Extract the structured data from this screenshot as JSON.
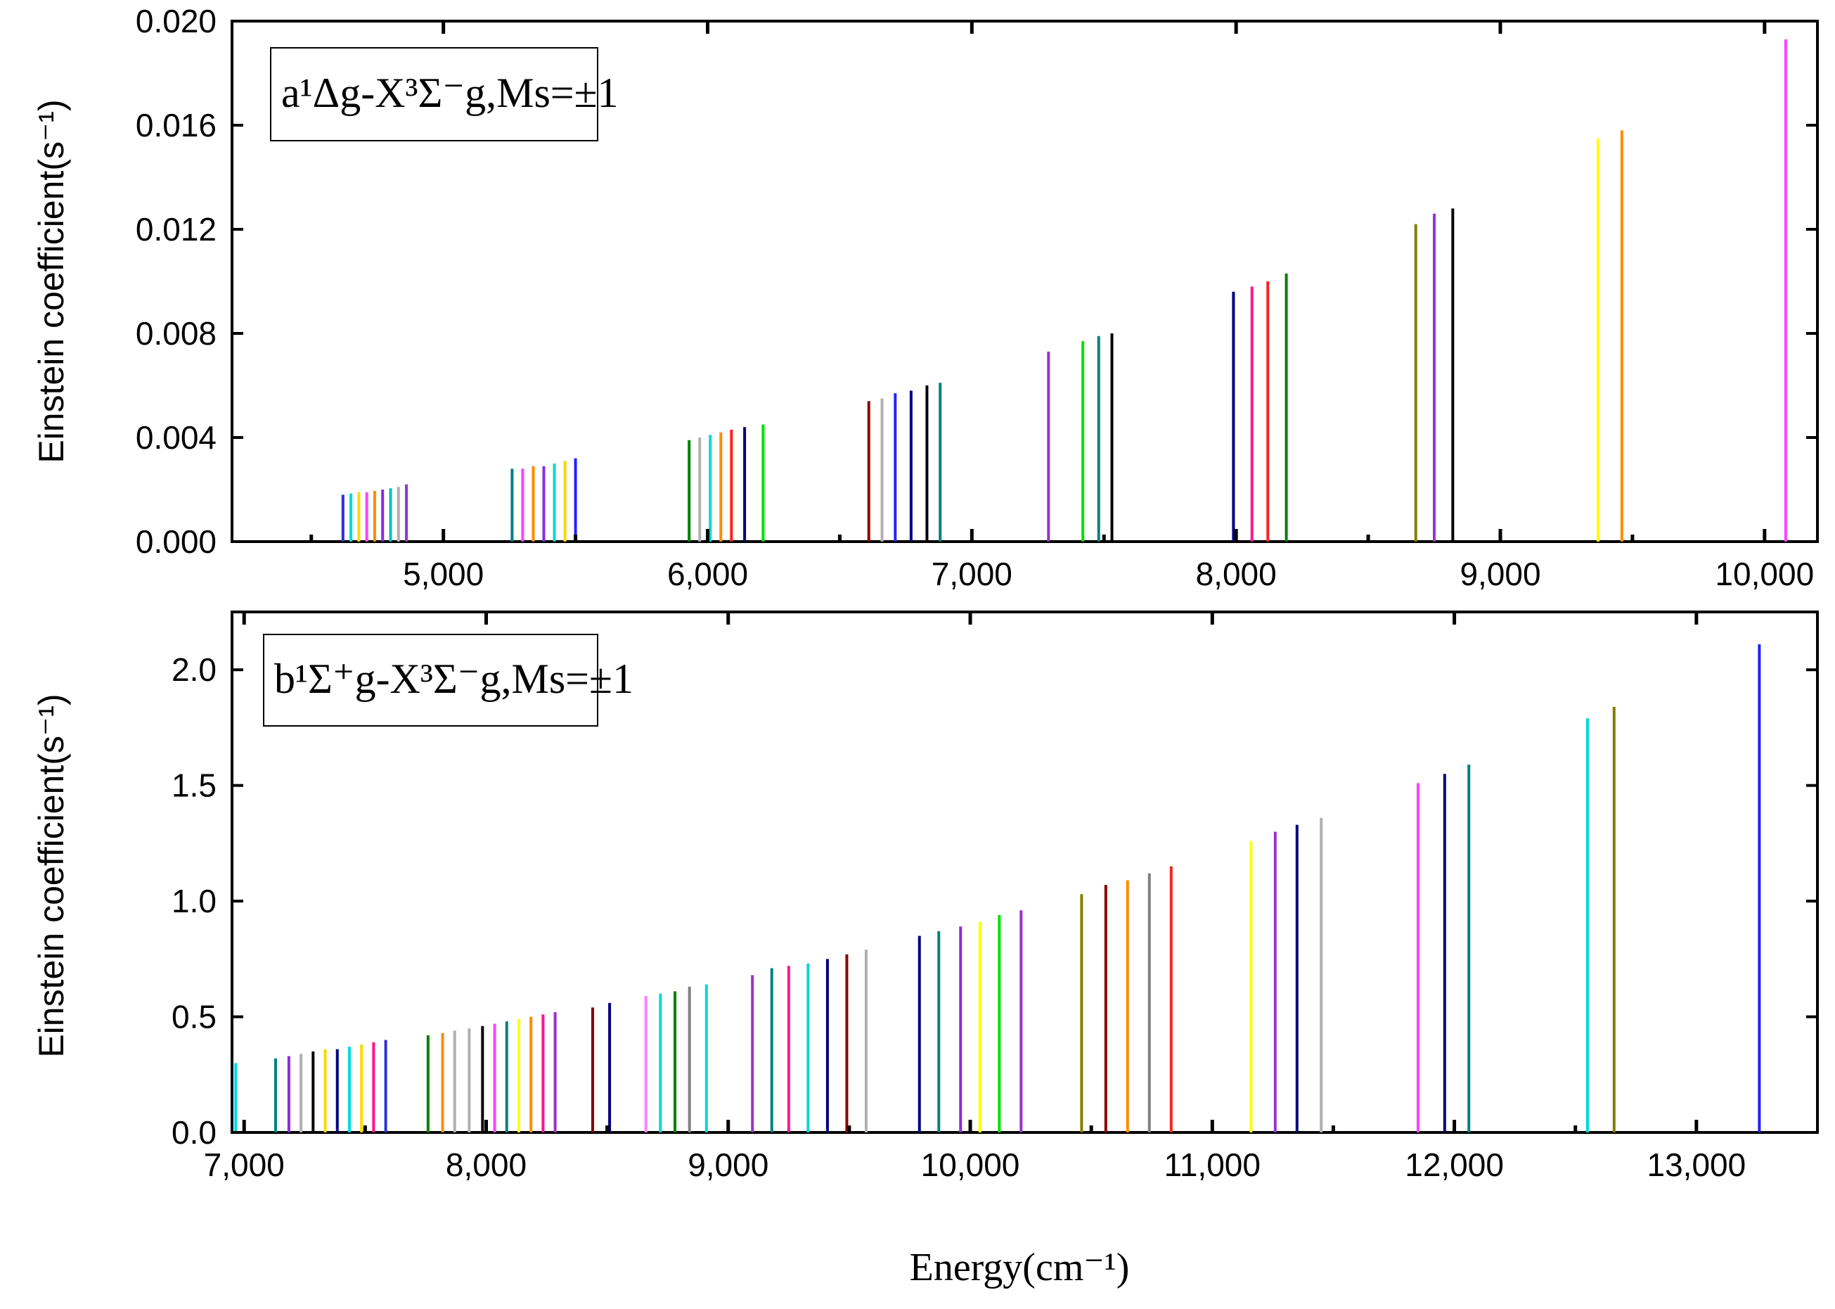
{
  "chart_data": [
    {
      "type": "bar",
      "legend": "a¹Δg-X³Σ⁻g,Ms=±1",
      "ylabel": "Einstein coefficient(s⁻¹)",
      "xlabel": "",
      "xlim": [
        4200,
        10200
      ],
      "ylim": [
        0,
        0.02
      ],
      "xticks": [
        "5,000",
        "6,000",
        "7,000",
        "8,000",
        "9,000",
        "10,000"
      ],
      "xtick_values": [
        5000,
        6000,
        7000,
        8000,
        9000,
        10000
      ],
      "yticks": [
        "0.000",
        "0.004",
        "0.008",
        "0.012",
        "0.016",
        "0.020"
      ],
      "ytick_values": [
        0,
        0.004,
        0.008,
        0.012,
        0.016,
        0.02
      ],
      "series": [
        {
          "x": 4620,
          "value": 0.0018,
          "color": "#3030d0"
        },
        {
          "x": 4650,
          "value": 0.00185,
          "color": "#00d8d8"
        },
        {
          "x": 4680,
          "value": 0.0019,
          "color": "#ffd700"
        },
        {
          "x": 4710,
          "value": 0.0019,
          "color": "#ff40ff"
        },
        {
          "x": 4740,
          "value": 0.00195,
          "color": "#ff8c00"
        },
        {
          "x": 4770,
          "value": 0.002,
          "color": "#8a2be2"
        },
        {
          "x": 4800,
          "value": 0.00205,
          "color": "#00c0c0"
        },
        {
          "x": 4830,
          "value": 0.0021,
          "color": "#b0b0b0"
        },
        {
          "x": 4860,
          "value": 0.0022,
          "color": "#9932cc"
        },
        {
          "x": 5260,
          "value": 0.0028,
          "color": "#008080"
        },
        {
          "x": 5300,
          "value": 0.0028,
          "color": "#ff40ff"
        },
        {
          "x": 5340,
          "value": 0.0029,
          "color": "#ff8c00"
        },
        {
          "x": 5380,
          "value": 0.0029,
          "color": "#8a2be2"
        },
        {
          "x": 5420,
          "value": 0.003,
          "color": "#00d8d8"
        },
        {
          "x": 5460,
          "value": 0.0031,
          "color": "#ffd700"
        },
        {
          "x": 5500,
          "value": 0.0032,
          "color": "#2020ff"
        },
        {
          "x": 5930,
          "value": 0.0039,
          "color": "#008000"
        },
        {
          "x": 5970,
          "value": 0.004,
          "color": "#b0b0b0"
        },
        {
          "x": 6010,
          "value": 0.0041,
          "color": "#00d8d8"
        },
        {
          "x": 6050,
          "value": 0.0042,
          "color": "#ff8c00"
        },
        {
          "x": 6090,
          "value": 0.0043,
          "color": "#ff2020"
        },
        {
          "x": 6140,
          "value": 0.0044,
          "color": "#000080"
        },
        {
          "x": 6210,
          "value": 0.0045,
          "color": "#00e000"
        },
        {
          "x": 6610,
          "value": 0.0054,
          "color": "#8b0000"
        },
        {
          "x": 6660,
          "value": 0.0055,
          "color": "#b0b0b0"
        },
        {
          "x": 6710,
          "value": 0.0057,
          "color": "#2020ff"
        },
        {
          "x": 6770,
          "value": 0.0058,
          "color": "#000080"
        },
        {
          "x": 6830,
          "value": 0.006,
          "color": "#000000"
        },
        {
          "x": 6880,
          "value": 0.0061,
          "color": "#008080"
        },
        {
          "x": 7290,
          "value": 0.0073,
          "color": "#9932cc"
        },
        {
          "x": 7420,
          "value": 0.0077,
          "color": "#00e000"
        },
        {
          "x": 7480,
          "value": 0.0079,
          "color": "#008080"
        },
        {
          "x": 7530,
          "value": 0.008,
          "color": "#000000"
        },
        {
          "x": 7990,
          "value": 0.0096,
          "color": "#000080"
        },
        {
          "x": 8060,
          "value": 0.0098,
          "color": "#ff1493"
        },
        {
          "x": 8120,
          "value": 0.01,
          "color": "#ff2020"
        },
        {
          "x": 8190,
          "value": 0.0103,
          "color": "#008000"
        },
        {
          "x": 8680,
          "value": 0.0122,
          "color": "#808000"
        },
        {
          "x": 8750,
          "value": 0.0126,
          "color": "#9932cc"
        },
        {
          "x": 8820,
          "value": 0.0128,
          "color": "#000000"
        },
        {
          "x": 9370,
          "value": 0.0155,
          "color": "#ffff00"
        },
        {
          "x": 9460,
          "value": 0.0158,
          "color": "#ff8c00"
        },
        {
          "x": 10080,
          "value": 0.0193,
          "color": "#ff40ff"
        }
      ]
    },
    {
      "type": "bar",
      "legend": "b¹Σ⁺g-X³Σ⁻g,Ms=±1",
      "ylabel": "Einstein coefficient(s⁻¹)",
      "xlabel": "Energy(cm⁻¹)",
      "xlim": [
        6950,
        13500
      ],
      "ylim": [
        0,
        2.25
      ],
      "xticks": [
        "7,000",
        "8,000",
        "9,000",
        "10,000",
        "11,000",
        "12,000",
        "13,000"
      ],
      "xtick_values": [
        7000,
        8000,
        9000,
        10000,
        11000,
        12000,
        13000
      ],
      "yticks": [
        "0.0",
        "0.5",
        "1.0",
        "1.5",
        "2.0"
      ],
      "ytick_values": [
        0,
        0.5,
        1.0,
        1.5,
        2.0
      ],
      "series": [
        {
          "x": 6965,
          "value": 0.3,
          "color": "#00d8d8"
        },
        {
          "x": 7130,
          "value": 0.32,
          "color": "#008080"
        },
        {
          "x": 7185,
          "value": 0.33,
          "color": "#8a2be2"
        },
        {
          "x": 7235,
          "value": 0.34,
          "color": "#b0b0b0"
        },
        {
          "x": 7285,
          "value": 0.35,
          "color": "#000000"
        },
        {
          "x": 7335,
          "value": 0.36,
          "color": "#ffd700"
        },
        {
          "x": 7385,
          "value": 0.36,
          "color": "#000080"
        },
        {
          "x": 7435,
          "value": 0.37,
          "color": "#00d8d8"
        },
        {
          "x": 7485,
          "value": 0.38,
          "color": "#ffd700"
        },
        {
          "x": 7535,
          "value": 0.39,
          "color": "#ff1493"
        },
        {
          "x": 7585,
          "value": 0.4,
          "color": "#3030d0"
        },
        {
          "x": 7760,
          "value": 0.42,
          "color": "#008000"
        },
        {
          "x": 7820,
          "value": 0.43,
          "color": "#ff8c00"
        },
        {
          "x": 7870,
          "value": 0.44,
          "color": "#b0b0b0"
        },
        {
          "x": 7930,
          "value": 0.45,
          "color": "#b0b0b0"
        },
        {
          "x": 7985,
          "value": 0.46,
          "color": "#000000"
        },
        {
          "x": 8035,
          "value": 0.47,
          "color": "#ff40ff"
        },
        {
          "x": 8085,
          "value": 0.48,
          "color": "#008080"
        },
        {
          "x": 8135,
          "value": 0.49,
          "color": "#ffff00"
        },
        {
          "x": 8185,
          "value": 0.5,
          "color": "#ff8c00"
        },
        {
          "x": 8235,
          "value": 0.51,
          "color": "#ff1493"
        },
        {
          "x": 8285,
          "value": 0.52,
          "color": "#9932cc"
        },
        {
          "x": 8440,
          "value": 0.54,
          "color": "#8b0000"
        },
        {
          "x": 8510,
          "value": 0.56,
          "color": "#000080"
        },
        {
          "x": 8660,
          "value": 0.59,
          "color": "#ff80ff"
        },
        {
          "x": 8720,
          "value": 0.6,
          "color": "#00d8d8"
        },
        {
          "x": 8780,
          "value": 0.61,
          "color": "#008000"
        },
        {
          "x": 8840,
          "value": 0.63,
          "color": "#808080"
        },
        {
          "x": 8910,
          "value": 0.64,
          "color": "#00d8d8"
        },
        {
          "x": 9100,
          "value": 0.68,
          "color": "#9932cc"
        },
        {
          "x": 9180,
          "value": 0.71,
          "color": "#008080"
        },
        {
          "x": 9250,
          "value": 0.72,
          "color": "#ff1493"
        },
        {
          "x": 9330,
          "value": 0.73,
          "color": "#00d8d8"
        },
        {
          "x": 9410,
          "value": 0.75,
          "color": "#000080"
        },
        {
          "x": 9490,
          "value": 0.77,
          "color": "#8b0000"
        },
        {
          "x": 9570,
          "value": 0.79,
          "color": "#b0b0b0"
        },
        {
          "x": 9790,
          "value": 0.85,
          "color": "#000080"
        },
        {
          "x": 9870,
          "value": 0.87,
          "color": "#008080"
        },
        {
          "x": 9960,
          "value": 0.89,
          "color": "#8a2be2"
        },
        {
          "x": 10040,
          "value": 0.91,
          "color": "#ffff00"
        },
        {
          "x": 10120,
          "value": 0.94,
          "color": "#00e000"
        },
        {
          "x": 10210,
          "value": 0.96,
          "color": "#9932cc"
        },
        {
          "x": 10460,
          "value": 1.03,
          "color": "#808000"
        },
        {
          "x": 10560,
          "value": 1.07,
          "color": "#8b0000"
        },
        {
          "x": 10650,
          "value": 1.09,
          "color": "#ff8c00"
        },
        {
          "x": 10740,
          "value": 1.12,
          "color": "#808080"
        },
        {
          "x": 10830,
          "value": 1.15,
          "color": "#ff2020"
        },
        {
          "x": 11160,
          "value": 1.26,
          "color": "#ffff00"
        },
        {
          "x": 11260,
          "value": 1.3,
          "color": "#9932cc"
        },
        {
          "x": 11350,
          "value": 1.33,
          "color": "#000080"
        },
        {
          "x": 11450,
          "value": 1.36,
          "color": "#b0b0b0"
        },
        {
          "x": 11850,
          "value": 1.51,
          "color": "#ff40ff"
        },
        {
          "x": 11960,
          "value": 1.55,
          "color": "#000080"
        },
        {
          "x": 12060,
          "value": 1.59,
          "color": "#008080"
        },
        {
          "x": 12550,
          "value": 1.79,
          "color": "#00d8d8"
        },
        {
          "x": 12660,
          "value": 1.84,
          "color": "#808000"
        },
        {
          "x": 13260,
          "value": 2.11,
          "color": "#2020ff"
        }
      ]
    }
  ]
}
